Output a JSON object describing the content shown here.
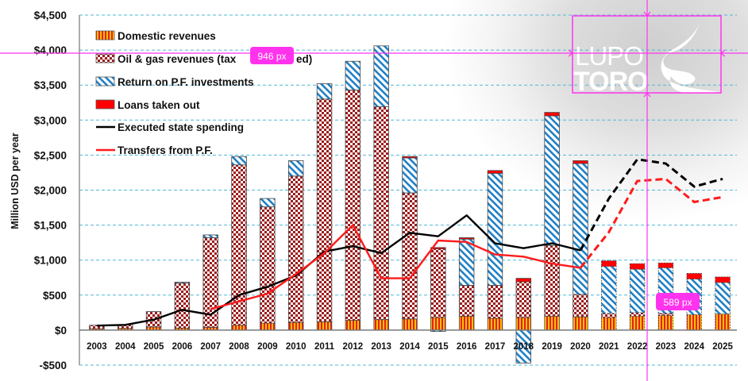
{
  "chart_data": {
    "type": "bar",
    "stacked": true,
    "title": "",
    "xlabel": "",
    "ylabel": "Million USD per year",
    "ylim": [
      -500,
      4500
    ],
    "ytick_step": 500,
    "ytick_labels": [
      "-$500",
      "$0",
      "$500",
      "$1,000",
      "$1,500",
      "$2,000",
      "$2,500",
      "$3,000",
      "$3,500",
      "$4,000",
      "$4,500"
    ],
    "grid": "horizontal dashed",
    "legend_position": "top-left",
    "categories": [
      "2003",
      "2004",
      "2005",
      "2006",
      "2007",
      "2008",
      "2009",
      "2010",
      "2011",
      "2012",
      "2013",
      "2014",
      "2015",
      "2016",
      "2017",
      "2018",
      "2019",
      "2020",
      "2021",
      "2022",
      "2023",
      "2024",
      "2025"
    ],
    "forecast_from": "2021",
    "series": [
      {
        "name": "Domestic revenues",
        "kind": "bar",
        "pattern": "vertical-stripes",
        "colors": [
          "#ffc000",
          "#e02020"
        ],
        "values": [
          20,
          25,
          45,
          30,
          40,
          70,
          100,
          110,
          120,
          140,
          150,
          160,
          180,
          200,
          170,
          180,
          200,
          190,
          180,
          200,
          210,
          220,
          230
        ]
      },
      {
        "name": "Oil & gas revenues (taxes + royalties)",
        "legend_label": "Oil & gas revenues (tax... ed)",
        "kind": "bar",
        "pattern": "checker",
        "colors": [
          "#9b1b1b",
          "#ffffff"
        ],
        "values": [
          50,
          55,
          220,
          640,
          1280,
          2290,
          1660,
          2090,
          3180,
          3290,
          3040,
          1800,
          980,
          440,
          470,
          510,
          1010,
          320,
          60,
          50,
          30,
          0,
          0
        ]
      },
      {
        "name": "Return on P.F. investments",
        "kind": "bar",
        "pattern": "diagonal-stripes",
        "colors": [
          "#1f7fc4",
          "#ffffff"
        ],
        "values": [
          0,
          0,
          0,
          15,
          40,
          120,
          120,
          220,
          220,
          410,
          870,
          500,
          -20,
          660,
          1600,
          -470,
          1850,
          1870,
          670,
          620,
          650,
          510,
          450
        ]
      },
      {
        "name": "Loans taken out",
        "kind": "bar",
        "pattern": "solid",
        "colors": [
          "#ff0000"
        ],
        "values": [
          0,
          0,
          0,
          0,
          0,
          0,
          0,
          0,
          0,
          0,
          0,
          20,
          20,
          20,
          40,
          50,
          50,
          40,
          80,
          80,
          70,
          80,
          80
        ]
      },
      {
        "name": "Executed state spending",
        "kind": "line",
        "color": "#000000",
        "values": [
          65,
          75,
          150,
          290,
          220,
          500,
          620,
          780,
          1120,
          1200,
          1100,
          1390,
          1340,
          1640,
          1240,
          1170,
          1240,
          1140,
          1880,
          2440,
          2380,
          2050,
          2160
        ]
      },
      {
        "name": "Transfers from P.F.",
        "kind": "line",
        "color": "#ff1a1a",
        "values": [
          null,
          null,
          null,
          null,
          300,
          410,
          520,
          800,
          1100,
          1500,
          740,
          740,
          1280,
          1260,
          1080,
          1050,
          950,
          890,
          1400,
          2130,
          2160,
          1830,
          1900
        ]
      }
    ]
  },
  "legend": {
    "items": [
      {
        "label": "Domestic revenues"
      },
      {
        "label": "Oil & gas revenues (tax"
      },
      {
        "label": "Return on P.F. investments"
      },
      {
        "label": "Loans taken out"
      },
      {
        "label": "Executed state spending"
      },
      {
        "label": "Transfers from P.F."
      }
    ],
    "label_suffix_1": "ed)"
  },
  "logo": {
    "line1": "LUPO",
    "line2": "TORO"
  },
  "overlay": {
    "width_badge": "946 px",
    "height_badge": "589 px",
    "accent": "#ff33ee"
  }
}
